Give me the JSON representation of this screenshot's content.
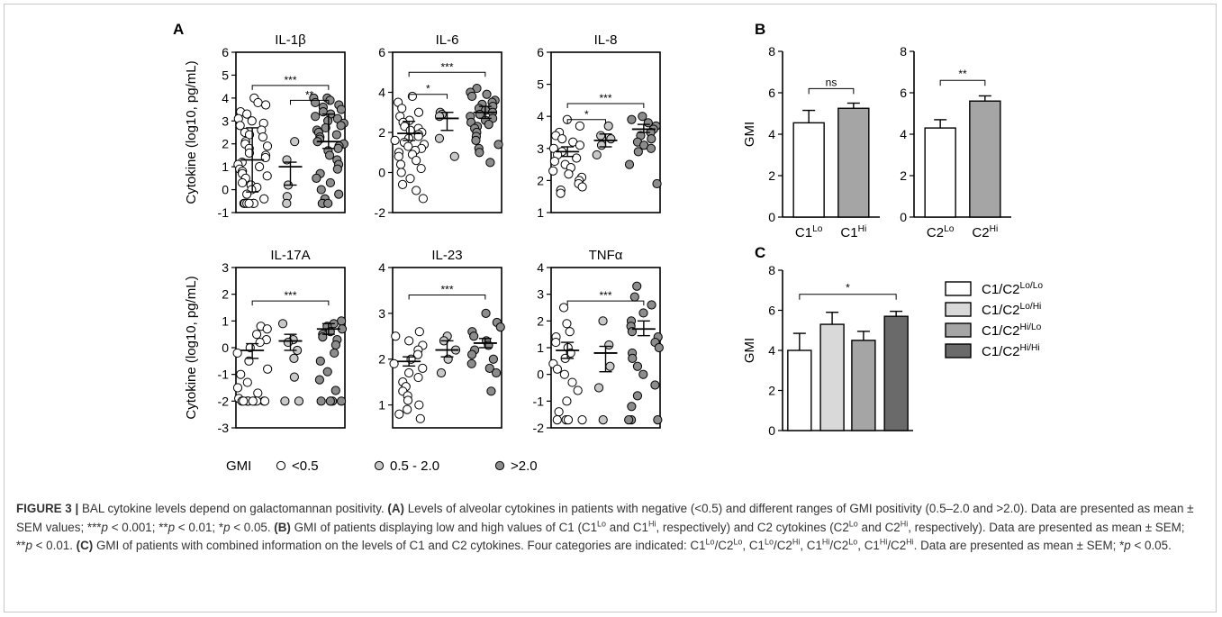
{
  "chart_data": [
    {
      "panel": "A",
      "type": "scatter",
      "title": "IL-1β",
      "ylabel": "Cytokine (log10, pg/mL)",
      "ylim": [
        -1,
        6
      ],
      "yticks": [
        -1,
        0,
        1,
        2,
        3,
        4,
        5,
        6
      ],
      "groups": [
        {
          "name": "<0.5",
          "mean": 1.3,
          "sem_low": -0.1,
          "sem_high": 2.7,
          "sd_low": -0.1,
          "sd_high": 2.7,
          "values": [
            4.0,
            3.8,
            3.7,
            3.4,
            3.3,
            3.1,
            3.0,
            2.9,
            2.8,
            2.6,
            2.5,
            2.4,
            2.3,
            2.1,
            2.0,
            1.9,
            1.8,
            1.6,
            1.5,
            1.4,
            1.2,
            1.1,
            1.0,
            0.9,
            0.8,
            0.7,
            0.6,
            0.5,
            0.3,
            0.2,
            0.1,
            0.0,
            -0.2,
            -0.4,
            -0.6,
            -0.6,
            -0.6,
            -0.6,
            -0.6,
            -0.6
          ]
        },
        {
          "name": "0.5 - 2.0",
          "mean": 1.0,
          "sem_low": 0.2,
          "sem_high": 1.2,
          "values": [
            2.1,
            1.3,
            0.2,
            -0.3,
            -0.6
          ]
        },
        {
          "name": ">2.0",
          "mean": 2.1,
          "sem_low": 1.8,
          "sem_high": 3.3,
          "values": [
            4.0,
            4.0,
            3.9,
            3.8,
            3.7,
            3.6,
            3.5,
            3.4,
            3.3,
            3.2,
            3.1,
            3.0,
            2.9,
            2.8,
            2.7,
            2.6,
            2.5,
            2.4,
            2.3,
            2.2,
            2.1,
            2.0,
            1.9,
            1.8,
            1.7,
            1.5,
            1.3,
            1.1,
            0.9,
            0.7,
            0.5,
            0.3,
            0.0,
            -0.2,
            -0.4,
            -0.6,
            -0.6,
            -0.6
          ]
        }
      ],
      "sig": [
        {
          "from": 0,
          "to": 2,
          "label": "***",
          "y": 4.55
        },
        {
          "from": 1,
          "to": 2,
          "label": "**",
          "y": 3.9
        }
      ]
    },
    {
      "panel": "A",
      "type": "scatter",
      "title": "IL-6",
      "ylim": [
        -2,
        6
      ],
      "yticks": [
        -2,
        0,
        2,
        4,
        6
      ],
      "groups": [
        {
          "name": "<0.5",
          "mean": 1.95,
          "sem_low": 1.6,
          "sem_high": 2.55,
          "values": [
            3.8,
            3.5,
            3.2,
            3.0,
            2.8,
            2.6,
            2.5,
            2.3,
            2.2,
            2.1,
            2.0,
            1.9,
            1.8,
            1.7,
            1.6,
            1.5,
            1.4,
            1.3,
            1.2,
            1.1,
            1.0,
            0.9,
            0.8,
            0.6,
            0.4,
            0.2,
            0.0,
            -0.3,
            -0.6,
            -0.9,
            -1.3
          ]
        },
        {
          "name": "0.5 - 2.0",
          "mean": 2.7,
          "sem_low": 2.1,
          "sem_high": 3.0,
          "values": [
            3.0,
            2.9,
            2.8,
            1.7,
            0.8
          ]
        },
        {
          "name": ">2.0",
          "mean": 3.0,
          "sem_low": 2.7,
          "sem_high": 3.3,
          "values": [
            4.2,
            4.0,
            3.9,
            3.8,
            3.6,
            3.5,
            3.4,
            3.3,
            3.2,
            3.1,
            3.0,
            2.9,
            2.8,
            2.7,
            2.6,
            2.5,
            2.4,
            2.3,
            2.2,
            2.0,
            1.8,
            1.6,
            1.4,
            1.2,
            1.0,
            0.5
          ]
        }
      ],
      "sig": [
        {
          "from": 0,
          "to": 2,
          "label": "***",
          "y": 5.0
        },
        {
          "from": 0,
          "to": 1,
          "label": "*",
          "y": 3.9
        }
      ]
    },
    {
      "panel": "A",
      "type": "scatter",
      "title": "IL-8",
      "ylim": [
        1,
        6
      ],
      "yticks": [
        1,
        2,
        3,
        4,
        5,
        6
      ],
      "groups": [
        {
          "name": "<0.5",
          "mean": 2.9,
          "sem_low": 2.75,
          "sem_high": 3.05,
          "values": [
            3.9,
            3.7,
            3.5,
            3.4,
            3.3,
            3.2,
            3.1,
            3.0,
            2.9,
            2.8,
            2.7,
            2.6,
            2.5,
            2.4,
            2.3,
            2.2,
            2.1,
            2.0,
            1.9,
            1.8,
            1.7,
            1.7,
            1.6
          ]
        },
        {
          "name": "0.5 - 2.0",
          "mean": 3.25,
          "sem_low": 3.05,
          "sem_high": 3.45,
          "values": [
            3.7,
            3.4,
            3.3,
            3.1,
            2.8
          ]
        },
        {
          "name": ">2.0",
          "mean": 3.6,
          "sem_low": 3.5,
          "sem_high": 3.75,
          "values": [
            4.0,
            3.9,
            3.8,
            3.7,
            3.6,
            3.5,
            3.4,
            3.3,
            3.2,
            3.1,
            3.0,
            2.9,
            2.5,
            1.9
          ]
        }
      ],
      "sig": [
        {
          "from": 0,
          "to": 2,
          "label": "***",
          "y": 4.4
        },
        {
          "from": 0,
          "to": 1,
          "label": "*",
          "y": 3.9
        }
      ]
    },
    {
      "panel": "A",
      "type": "scatter",
      "title": "IL-17A",
      "ylabel": "Cytokine (log10, pg/mL)",
      "ylim": [
        -3,
        3
      ],
      "yticks": [
        -3,
        -2,
        -1,
        0,
        1,
        2,
        3
      ],
      "groups": [
        {
          "name": "<0.5",
          "mean": -0.1,
          "sem_low": -0.4,
          "sem_high": 0.15,
          "values": [
            0.8,
            0.7,
            0.5,
            0.3,
            0.2,
            0.0,
            -0.2,
            -0.5,
            -0.8,
            -1.0,
            -1.3,
            -1.5,
            -1.7,
            -1.9,
            -2.0,
            -2.0,
            -2.0,
            -2.0,
            -2.0,
            -2.0,
            -2.0,
            -2.0,
            -2.0,
            -2.0
          ]
        },
        {
          "name": "0.5 - 2.0",
          "mean": 0.25,
          "sem_low": -0.1,
          "sem_high": 0.5,
          "values": [
            0.9,
            0.3,
            0.2,
            -0.1,
            -0.4,
            -1.1,
            -2.0,
            -2.0
          ]
        },
        {
          "name": ">2.0",
          "mean": 0.7,
          "sem_low": 0.5,
          "sem_high": 0.9,
          "values": [
            1.0,
            0.9,
            0.8,
            0.7,
            0.6,
            0.5,
            0.4,
            0.3,
            0.1,
            -0.2,
            -0.5,
            -0.9,
            -1.2,
            -1.6,
            -2.0,
            -2.0,
            -2.0,
            -2.0,
            -2.0
          ]
        }
      ],
      "sig": [
        {
          "from": 0,
          "to": 2,
          "label": "***",
          "y": 1.75
        }
      ]
    },
    {
      "panel": "A",
      "type": "scatter",
      "title": "IL-23",
      "ylim": [
        0.5,
        4
      ],
      "yticks": [
        1,
        2,
        3,
        4
      ],
      "groups": [
        {
          "name": "<0.5",
          "mean": 1.95,
          "sem_low": 1.85,
          "sem_high": 2.05,
          "values": [
            2.6,
            2.5,
            2.4,
            2.3,
            2.2,
            2.1,
            2.0,
            1.9,
            1.8,
            1.7,
            1.6,
            1.5,
            1.4,
            1.3,
            1.2,
            1.1,
            1.0,
            0.9,
            0.8,
            0.7
          ]
        },
        {
          "name": "0.5 - 2.0",
          "mean": 2.2,
          "sem_low": 2.05,
          "sem_high": 2.4,
          "values": [
            2.5,
            2.4,
            2.2,
            2.0,
            1.7
          ]
        },
        {
          "name": ">2.0",
          "mean": 2.35,
          "sem_low": 2.25,
          "sem_high": 2.45,
          "values": [
            3.0,
            2.8,
            2.7,
            2.6,
            2.5,
            2.4,
            2.3,
            2.2,
            2.1,
            2.0,
            1.9,
            1.8,
            1.7,
            1.3
          ]
        }
      ],
      "sig": [
        {
          "from": 0,
          "to": 2,
          "label": "***",
          "y": 3.4
        }
      ]
    },
    {
      "panel": "A",
      "type": "scatter",
      "title": "TNFα",
      "ylim": [
        -2,
        4
      ],
      "yticks": [
        -2,
        -1,
        0,
        1,
        2,
        3,
        4
      ],
      "groups": [
        {
          "name": "<0.5",
          "mean": 0.9,
          "sem_low": 0.6,
          "sem_high": 1.2,
          "values": [
            2.5,
            1.9,
            1.6,
            1.4,
            1.2,
            1.0,
            0.8,
            0.6,
            0.4,
            0.2,
            0.0,
            -0.3,
            -0.6,
            -1.0,
            -1.4,
            -1.7,
            -1.7,
            -1.7,
            -1.7
          ]
        },
        {
          "name": "0.5 - 2.0",
          "mean": 0.8,
          "sem_low": 0.1,
          "sem_high": 1.05,
          "values": [
            2.0,
            1.1,
            0.3,
            -0.5,
            -1.7
          ]
        },
        {
          "name": ">2.0",
          "mean": 1.7,
          "sem_low": 1.45,
          "sem_high": 2.0,
          "values": [
            3.3,
            2.9,
            2.6,
            2.3,
            2.0,
            1.8,
            1.6,
            1.4,
            1.2,
            1.0,
            0.8,
            0.6,
            0.3,
            0.0,
            -0.4,
            -0.8,
            -1.2,
            -1.7,
            -1.7,
            -1.7
          ]
        }
      ],
      "sig": [
        {
          "from": 0,
          "to": 2,
          "label": "***",
          "y": 2.75
        }
      ]
    },
    {
      "panel": "B",
      "type": "bar",
      "ylabel": "GMI",
      "ylim": [
        0,
        8
      ],
      "yticks": [
        0,
        2,
        4,
        6,
        8
      ],
      "categories": [
        "C1Lo",
        "C1Hi"
      ],
      "values": [
        4.55,
        5.25
      ],
      "errors": [
        0.6,
        0.25
      ],
      "colors": [
        "#ffffff",
        "#a5a5a5"
      ],
      "sig": [
        {
          "from": 0,
          "to": 1,
          "label": "ns",
          "y": 6.2
        }
      ]
    },
    {
      "panel": "B",
      "type": "bar",
      "ylim": [
        0,
        8
      ],
      "yticks": [
        0,
        2,
        4,
        6,
        8
      ],
      "categories": [
        "C2Lo",
        "C2Hi"
      ],
      "values": [
        4.3,
        5.6
      ],
      "errors": [
        0.4,
        0.25
      ],
      "colors": [
        "#ffffff",
        "#a5a5a5"
      ],
      "sig": [
        {
          "from": 0,
          "to": 1,
          "label": "**",
          "y": 6.6
        }
      ]
    },
    {
      "panel": "C",
      "type": "bar",
      "ylabel": "GMI",
      "ylim": [
        0,
        8
      ],
      "yticks": [
        0,
        2,
        4,
        6,
        8
      ],
      "categories": [
        "C1/C2Lo/Lo",
        "C1/C2Lo/Hi",
        "C1/C2Hi/Lo",
        "C1/C2Hi/Hi"
      ],
      "values": [
        4.0,
        5.3,
        4.5,
        5.7
      ],
      "errors": [
        0.85,
        0.6,
        0.45,
        0.25
      ],
      "colors": [
        "#ffffff",
        "#d9d9d9",
        "#a5a5a5",
        "#6a6a6a"
      ],
      "sig": [
        {
          "from": 0,
          "to": 3,
          "label": "*",
          "y": 6.8
        }
      ]
    }
  ],
  "panel_labels": {
    "a": "A",
    "b": "B",
    "c": "C"
  },
  "gmi_legend": {
    "label": "GMI",
    "items": [
      {
        "text": "<0.5",
        "fill": "#ffffff"
      },
      {
        "text": "0.5 - 2.0",
        "fill": "#c8c8c8"
      },
      {
        "text": ">2.0",
        "fill": "#8c8c8c"
      }
    ]
  },
  "b_tick_labels": [
    {
      "base": "C1",
      "sup": "Lo"
    },
    {
      "base": "C1",
      "sup": "Hi"
    },
    {
      "base": "C2",
      "sup": "Lo"
    },
    {
      "base": "C2",
      "sup": "Hi"
    }
  ],
  "c_legend": [
    {
      "base": "C1/C2",
      "sup": "Lo/Lo",
      "fill": "#ffffff"
    },
    {
      "base": "C1/C2",
      "sup": "Lo/Hi",
      "fill": "#d9d9d9"
    },
    {
      "base": "C1/C2",
      "sup": "Hi/Lo",
      "fill": "#a5a5a5"
    },
    {
      "base": "C1/C2",
      "sup": "Hi/Hi",
      "fill": "#6a6a6a"
    }
  ],
  "caption": {
    "fig": "FIGURE 3 |",
    "title": " BAL cytokine levels depend on galactomannan positivity. ",
    "a_lbl": "(A)",
    "a1": " Levels of alveolar cytokines in patients with negative (<0.5) and different ranges of GMI positivity (0.5–2.0 and >2.0). Data are presented as mean ± SEM values; ***",
    "p": "p",
    "a2": " < 0.001; **",
    "a3": " < 0.01; *",
    "a4": " < 0.05. ",
    "b_lbl": "(B)",
    "b1": " GMI of patients displaying low and high values of C1 (C1",
    "lo": "Lo",
    "hi": "Hi",
    "b2": " and C1",
    "b3": ", respectively) and C2 cytokines (C2",
    "b4": " and C2",
    "b5": ", respectively). Data are presented as mean ± SEM; **",
    "b6": " < 0.01. ",
    "c_lbl": "(C)",
    "c1": " GMI of patients with combined information on the levels of C1 and C2 cytokines. Four categories are indicated: C1",
    "slash": "/C2",
    "comma": ", C1",
    "c2": ". Data are presented as mean ± SEM; *",
    "c3": " < 0.05."
  }
}
